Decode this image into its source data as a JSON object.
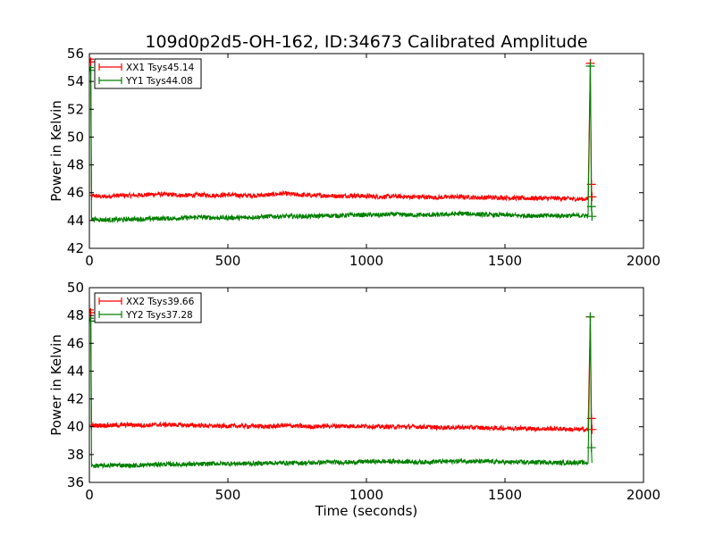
{
  "chart_data": [
    {
      "type": "line",
      "title": "109d0p2d5-OH-162, ID:34673 Calibrated Amplitude",
      "xlabel": "",
      "ylabel": "Power in Kelvin",
      "xlim": [
        0,
        2000
      ],
      "ylim": [
        42,
        56
      ],
      "xticks": [
        0,
        500,
        1000,
        1500,
        2000
      ],
      "yticks": [
        42,
        44,
        46,
        48,
        50,
        52,
        54,
        56
      ],
      "x_tick_labels": [
        "0",
        "500",
        "1000",
        "1500",
        "2000"
      ],
      "y_tick_labels": [
        "42",
        "44",
        "46",
        "48",
        "50",
        "52",
        "54",
        "56"
      ],
      "grid": false,
      "legend_position": "top-left",
      "series": [
        {
          "name": "XX1 Tsys45.14",
          "color": "#ff0000",
          "points": [
            [
              0,
              55.6
            ],
            [
              5,
              55.4
            ],
            [
              8,
              45.8
            ],
            [
              50,
              45.7
            ],
            [
              100,
              45.8
            ],
            [
              150,
              45.8
            ],
            [
              200,
              45.85
            ],
            [
              250,
              45.9
            ],
            [
              300,
              45.85
            ],
            [
              350,
              45.8
            ],
            [
              400,
              45.85
            ],
            [
              450,
              45.8
            ],
            [
              500,
              45.85
            ],
            [
              550,
              45.8
            ],
            [
              600,
              45.8
            ],
            [
              650,
              45.85
            ],
            [
              700,
              45.95
            ],
            [
              750,
              45.85
            ],
            [
              800,
              45.8
            ],
            [
              850,
              45.8
            ],
            [
              900,
              45.75
            ],
            [
              950,
              45.8
            ],
            [
              1000,
              45.75
            ],
            [
              1050,
              45.7
            ],
            [
              1100,
              45.75
            ],
            [
              1150,
              45.7
            ],
            [
              1200,
              45.7
            ],
            [
              1250,
              45.65
            ],
            [
              1300,
              45.7
            ],
            [
              1350,
              45.7
            ],
            [
              1400,
              45.65
            ],
            [
              1450,
              45.65
            ],
            [
              1500,
              45.65
            ],
            [
              1550,
              45.6
            ],
            [
              1600,
              45.6
            ],
            [
              1650,
              45.6
            ],
            [
              1700,
              45.6
            ],
            [
              1750,
              45.55
            ],
            [
              1800,
              45.55
            ],
            [
              1808,
              55.3
            ],
            [
              1812,
              46.6
            ],
            [
              1814,
              45.7
            ]
          ]
        },
        {
          "name": "YY1 Tsys44.08",
          "color": "#008000",
          "points": [
            [
              0,
              55.0
            ],
            [
              5,
              54.8
            ],
            [
              8,
              44.1
            ],
            [
              50,
              44.05
            ],
            [
              100,
              44.05
            ],
            [
              150,
              44.1
            ],
            [
              200,
              44.1
            ],
            [
              250,
              44.15
            ],
            [
              300,
              44.15
            ],
            [
              350,
              44.2
            ],
            [
              400,
              44.25
            ],
            [
              450,
              44.2
            ],
            [
              500,
              44.2
            ],
            [
              550,
              44.2
            ],
            [
              600,
              44.25
            ],
            [
              650,
              44.3
            ],
            [
              700,
              44.3
            ],
            [
              750,
              44.3
            ],
            [
              800,
              44.3
            ],
            [
              850,
              44.35
            ],
            [
              900,
              44.35
            ],
            [
              950,
              44.4
            ],
            [
              1000,
              44.4
            ],
            [
              1050,
              44.4
            ],
            [
              1100,
              44.45
            ],
            [
              1150,
              44.4
            ],
            [
              1200,
              44.4
            ],
            [
              1250,
              44.4
            ],
            [
              1300,
              44.45
            ],
            [
              1350,
              44.5
            ],
            [
              1400,
              44.45
            ],
            [
              1450,
              44.4
            ],
            [
              1500,
              44.4
            ],
            [
              1550,
              44.35
            ],
            [
              1600,
              44.35
            ],
            [
              1650,
              44.35
            ],
            [
              1700,
              44.35
            ],
            [
              1750,
              44.35
            ],
            [
              1800,
              44.35
            ],
            [
              1808,
              55.1
            ],
            [
              1812,
              45.0
            ],
            [
              1814,
              44.3
            ]
          ]
        }
      ]
    },
    {
      "type": "line",
      "title": "",
      "xlabel": "Time (seconds)",
      "ylabel": "Power in Kelvin",
      "xlim": [
        0,
        2000
      ],
      "ylim": [
        36,
        50
      ],
      "xticks": [
        0,
        500,
        1000,
        1500,
        2000
      ],
      "yticks": [
        36,
        38,
        40,
        42,
        44,
        46,
        48,
        50
      ],
      "x_tick_labels": [
        "0",
        "500",
        "1000",
        "1500",
        "2000"
      ],
      "y_tick_labels": [
        "36",
        "38",
        "40",
        "42",
        "44",
        "46",
        "48",
        "50"
      ],
      "grid": false,
      "legend_position": "top-left",
      "series": [
        {
          "name": "XX2 Tsys39.66",
          "color": "#ff0000",
          "points": [
            [
              0,
              48.4
            ],
            [
              5,
              48.2
            ],
            [
              8,
              40.1
            ],
            [
              50,
              40.1
            ],
            [
              100,
              40.1
            ],
            [
              150,
              40.15
            ],
            [
              200,
              40.1
            ],
            [
              250,
              40.15
            ],
            [
              300,
              40.15
            ],
            [
              350,
              40.1
            ],
            [
              400,
              40.1
            ],
            [
              450,
              40.05
            ],
            [
              500,
              40.05
            ],
            [
              550,
              40.05
            ],
            [
              600,
              40.05
            ],
            [
              650,
              40.0
            ],
            [
              700,
              40.1
            ],
            [
              750,
              40.05
            ],
            [
              800,
              40.0
            ],
            [
              850,
              40.05
            ],
            [
              900,
              40.05
            ],
            [
              950,
              40.05
            ],
            [
              1000,
              40.05
            ],
            [
              1050,
              40.0
            ],
            [
              1100,
              40.0
            ],
            [
              1150,
              40.0
            ],
            [
              1200,
              40.0
            ],
            [
              1250,
              39.95
            ],
            [
              1300,
              39.95
            ],
            [
              1350,
              39.95
            ],
            [
              1400,
              39.95
            ],
            [
              1450,
              39.9
            ],
            [
              1500,
              39.9
            ],
            [
              1550,
              39.9
            ],
            [
              1600,
              39.85
            ],
            [
              1650,
              39.85
            ],
            [
              1700,
              39.85
            ],
            [
              1750,
              39.8
            ],
            [
              1800,
              39.8
            ],
            [
              1808,
              47.9
            ],
            [
              1812,
              40.6
            ],
            [
              1814,
              39.8
            ]
          ]
        },
        {
          "name": "YY2 Tsys37.28",
          "color": "#008000",
          "points": [
            [
              0,
              47.8
            ],
            [
              5,
              47.6
            ],
            [
              8,
              37.2
            ],
            [
              50,
              37.2
            ],
            [
              100,
              37.25
            ],
            [
              150,
              37.2
            ],
            [
              200,
              37.25
            ],
            [
              250,
              37.3
            ],
            [
              300,
              37.3
            ],
            [
              350,
              37.3
            ],
            [
              400,
              37.3
            ],
            [
              450,
              37.35
            ],
            [
              500,
              37.35
            ],
            [
              550,
              37.35
            ],
            [
              600,
              37.35
            ],
            [
              650,
              37.4
            ],
            [
              700,
              37.4
            ],
            [
              750,
              37.4
            ],
            [
              800,
              37.4
            ],
            [
              850,
              37.45
            ],
            [
              900,
              37.45
            ],
            [
              950,
              37.45
            ],
            [
              1000,
              37.5
            ],
            [
              1050,
              37.5
            ],
            [
              1100,
              37.5
            ],
            [
              1150,
              37.5
            ],
            [
              1200,
              37.45
            ],
            [
              1250,
              37.5
            ],
            [
              1300,
              37.5
            ],
            [
              1350,
              37.55
            ],
            [
              1400,
              37.5
            ],
            [
              1450,
              37.5
            ],
            [
              1500,
              37.45
            ],
            [
              1550,
              37.45
            ],
            [
              1600,
              37.45
            ],
            [
              1650,
              37.45
            ],
            [
              1700,
              37.4
            ],
            [
              1750,
              37.45
            ],
            [
              1800,
              37.4
            ],
            [
              1808,
              47.9
            ],
            [
              1812,
              38.5
            ],
            [
              1814,
              37.4
            ]
          ]
        }
      ]
    }
  ]
}
